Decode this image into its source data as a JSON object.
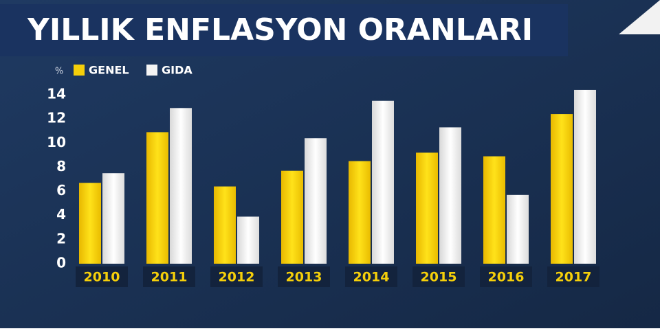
{
  "chart_data": {
    "type": "bar",
    "title": "YILLIK ENFLASYON ORANLARI",
    "y_label": "%",
    "categories": [
      "2010",
      "2011",
      "2012",
      "2013",
      "2014",
      "2015",
      "2016",
      "2017"
    ],
    "series": [
      {
        "name": "GENEL",
        "color": "#f5cf0a",
        "values": [
          6.7,
          10.9,
          6.4,
          7.7,
          8.5,
          9.2,
          8.9,
          12.4
        ]
      },
      {
        "name": "GIDA",
        "color": "#f4f4f4",
        "values": [
          7.5,
          12.9,
          3.9,
          10.4,
          13.5,
          11.3,
          5.7,
          14.4
        ]
      }
    ],
    "ylim": [
      0,
      15
    ],
    "yticks": [
      0,
      2,
      4,
      6,
      8,
      10,
      12,
      14
    ],
    "grid": false
  }
}
